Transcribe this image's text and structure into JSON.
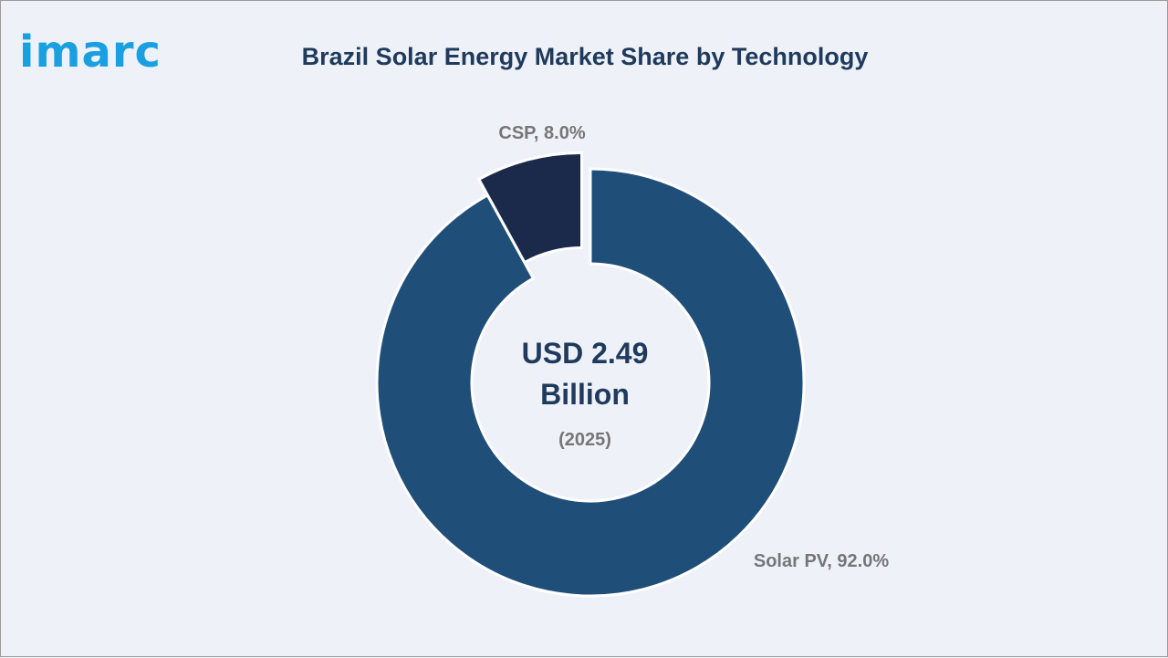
{
  "brand": {
    "logo_text": "imarc",
    "logo_color": "#1aa0e0"
  },
  "colors": {
    "background": "#eef2f8",
    "title": "#1f3a5c"
  },
  "chart_data": {
    "type": "pie",
    "variant": "donut",
    "title": "Brazil Solar Energy Market Share by Technology",
    "center_text": [
      "USD 2.49",
      "Billion"
    ],
    "center_subtext": "(2025)",
    "slices": [
      {
        "label": "Solar PV",
        "value": 92.0,
        "display": "Solar PV, 92.0%",
        "color": "#1f4e79",
        "exploded": false
      },
      {
        "label": "CSP",
        "value": 8.0,
        "display": "CSP, 8.0%",
        "color": "#1b2a4a",
        "exploded": true
      }
    ],
    "unit": "%"
  }
}
